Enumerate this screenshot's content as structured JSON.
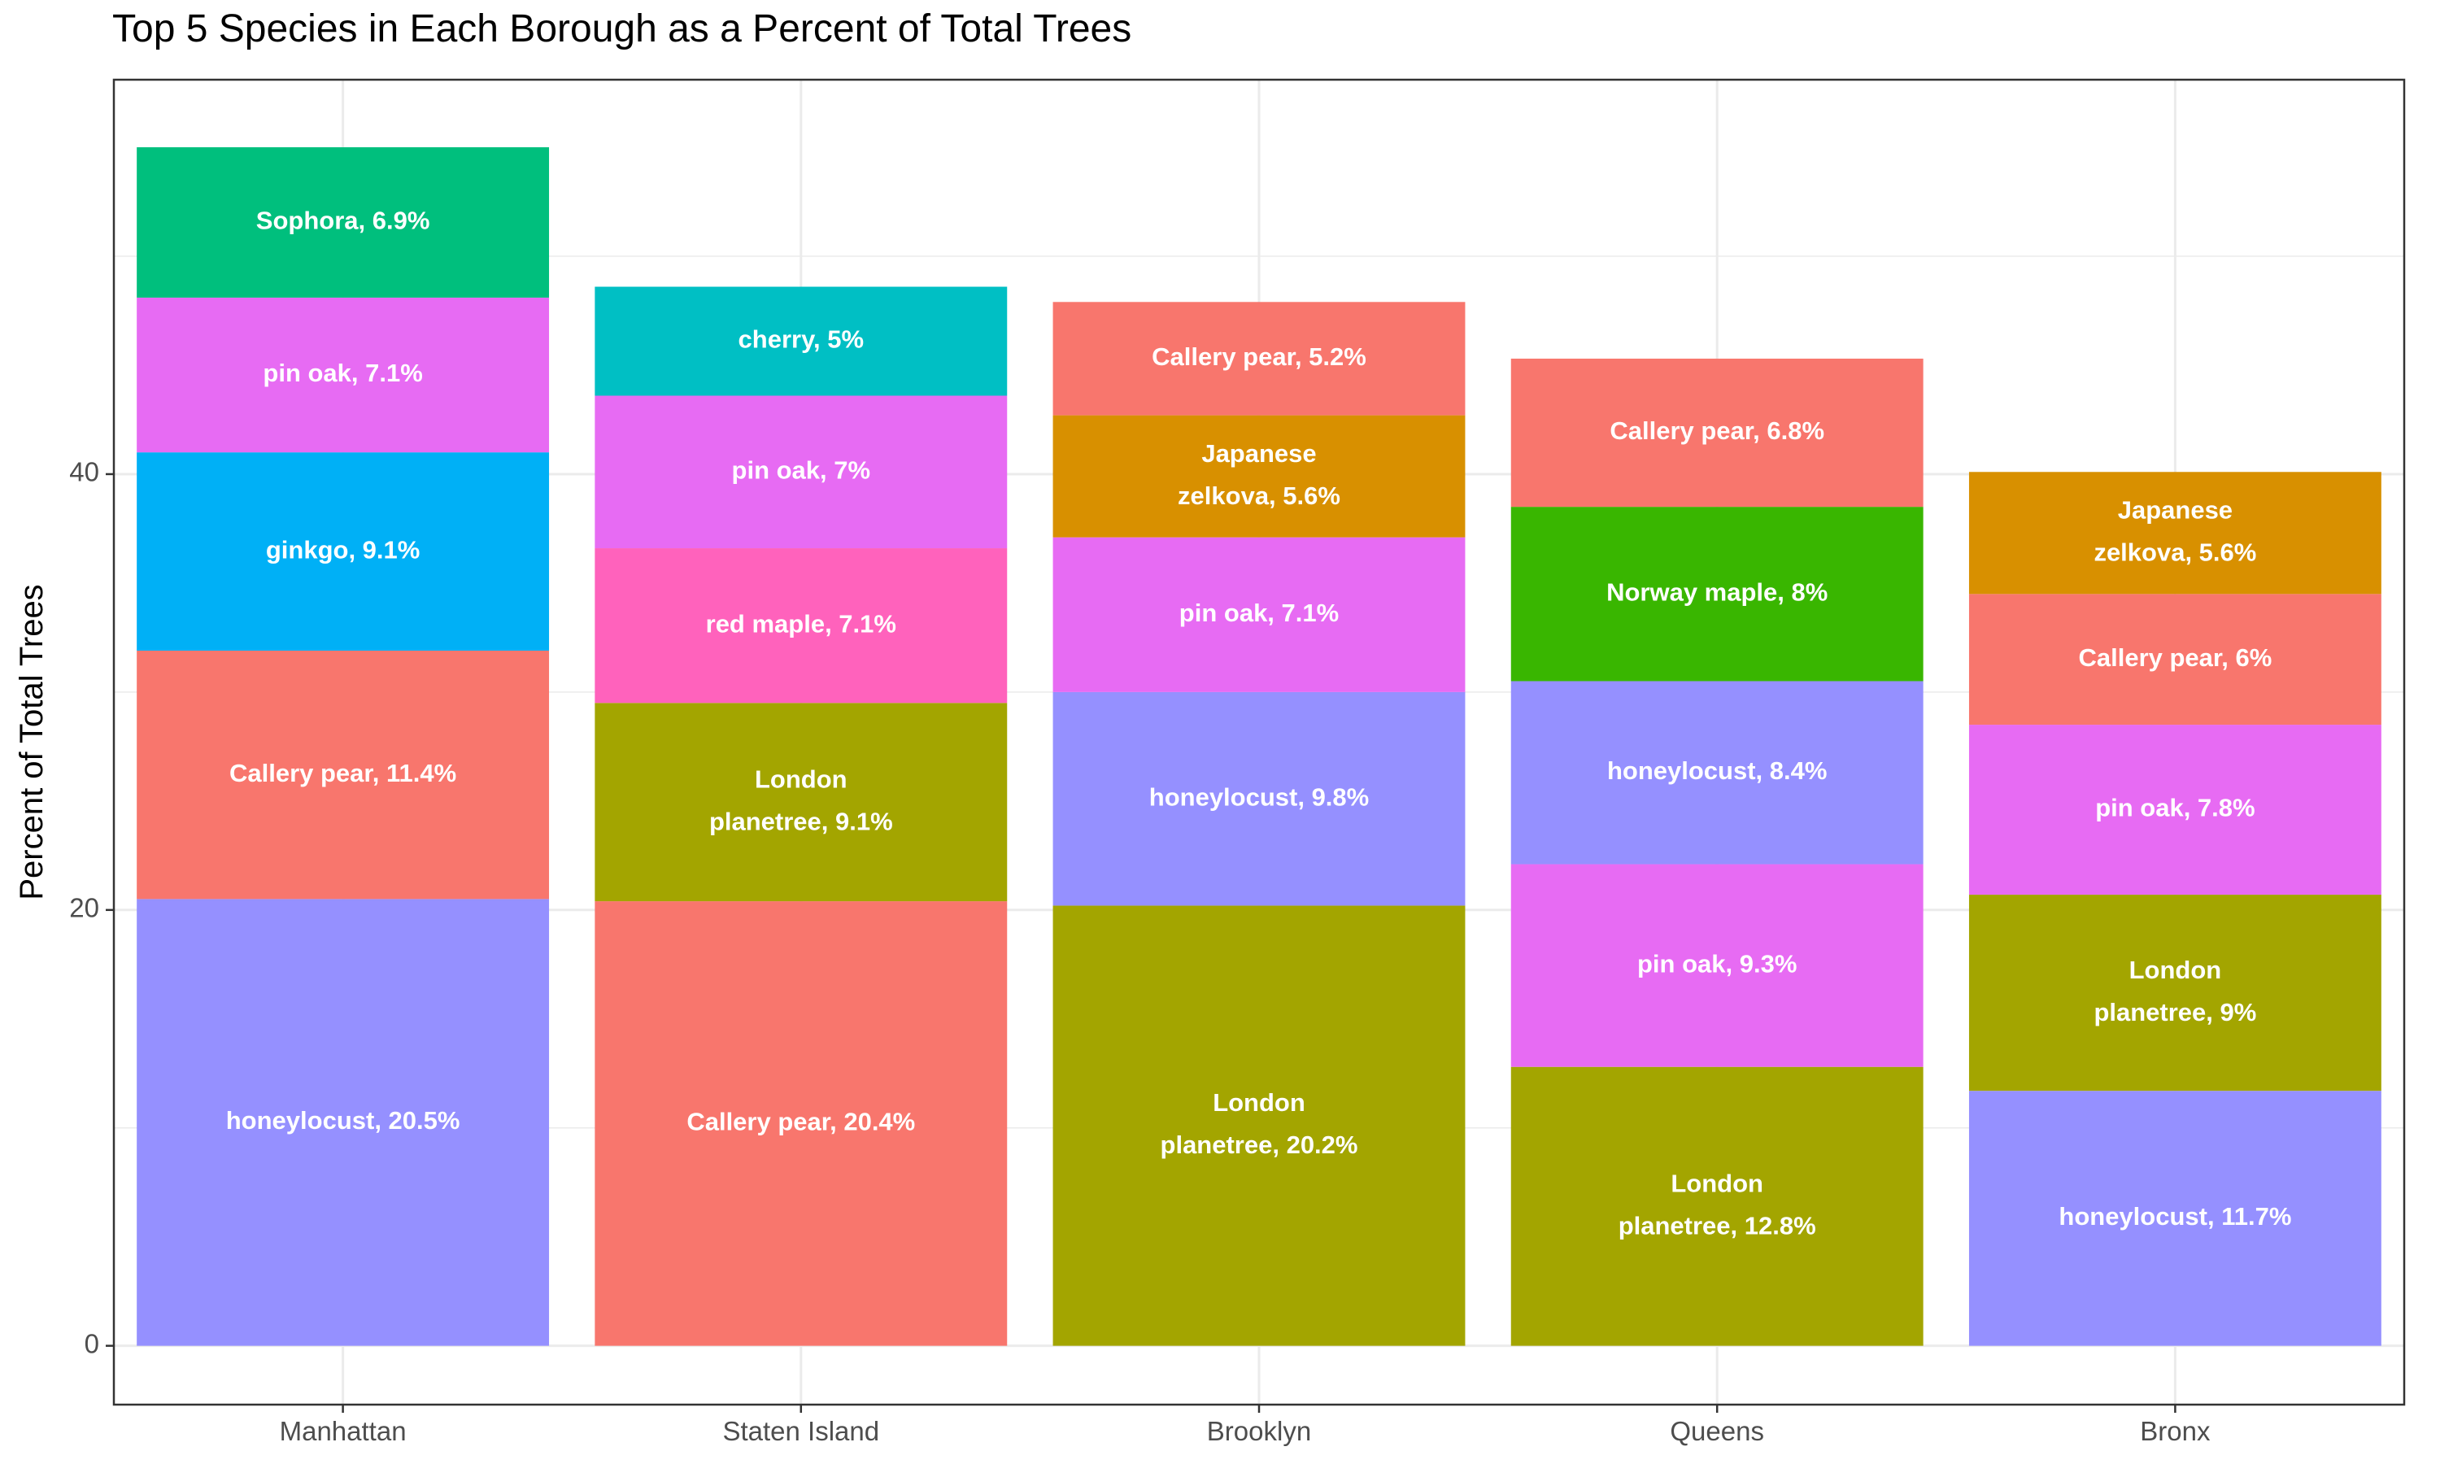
{
  "chart_data": {
    "type": "bar",
    "stacked": true,
    "title": "Top 5 Species in Each Borough as a Percent of Total Trees",
    "xlabel": "",
    "ylabel": "Percent of Total Trees",
    "ylim": [
      -2.7,
      58.1
    ],
    "yticks": [
      0,
      20,
      40
    ],
    "grid": true,
    "legend": "none",
    "categories": [
      "Manhattan",
      "Staten Island",
      "Brooklyn",
      "Queens",
      "Bronx"
    ],
    "colors": {
      "honeylocust": "#9590FF",
      "Callery pear": "#F8766D",
      "ginkgo": "#00B0F6",
      "pin oak": "#E76BF3",
      "Sophora": "#00BF7D",
      "London planetree": "#A3A500",
      "red maple": "#FF62BC",
      "cherry": "#00BFC4",
      "Japanese zelkova": "#D89000",
      "Norway maple": "#39B600"
    },
    "stacks": [
      {
        "category": "Manhattan",
        "segments": [
          {
            "species": "honeylocust",
            "value": 20.5,
            "label": [
              "honeylocust, 20.5%"
            ]
          },
          {
            "species": "Callery pear",
            "value": 11.4,
            "label": [
              "Callery pear, 11.4%"
            ]
          },
          {
            "species": "ginkgo",
            "value": 9.1,
            "label": [
              "ginkgo, 9.1%"
            ]
          },
          {
            "species": "pin oak",
            "value": 7.1,
            "label": [
              "pin oak, 7.1%"
            ]
          },
          {
            "species": "Sophora",
            "value": 6.9,
            "label": [
              "Sophora, 6.9%"
            ]
          }
        ]
      },
      {
        "category": "Staten Island",
        "segments": [
          {
            "species": "Callery pear",
            "value": 20.4,
            "label": [
              "Callery pear, 20.4%"
            ]
          },
          {
            "species": "London planetree",
            "value": 9.1,
            "label": [
              "London",
              "planetree, 9.1%"
            ]
          },
          {
            "species": "red maple",
            "value": 7.1,
            "label": [
              "red maple, 7.1%"
            ]
          },
          {
            "species": "pin oak",
            "value": 7.0,
            "label": [
              "pin oak, 7%"
            ]
          },
          {
            "species": "cherry",
            "value": 5.0,
            "label": [
              "cherry, 5%"
            ]
          }
        ]
      },
      {
        "category": "Brooklyn",
        "segments": [
          {
            "species": "London planetree",
            "value": 20.2,
            "label": [
              "London",
              "planetree, 20.2%"
            ]
          },
          {
            "species": "honeylocust",
            "value": 9.8,
            "label": [
              "honeylocust, 9.8%"
            ]
          },
          {
            "species": "pin oak",
            "value": 7.1,
            "label": [
              "pin oak, 7.1%"
            ]
          },
          {
            "species": "Japanese zelkova",
            "value": 5.6,
            "label": [
              "Japanese",
              "zelkova, 5.6%"
            ]
          },
          {
            "species": "Callery pear",
            "value": 5.2,
            "label": [
              "Callery pear, 5.2%"
            ]
          }
        ]
      },
      {
        "category": "Queens",
        "segments": [
          {
            "species": "London planetree",
            "value": 12.8,
            "label": [
              "London",
              "planetree, 12.8%"
            ]
          },
          {
            "species": "pin oak",
            "value": 9.3,
            "label": [
              "pin oak, 9.3%"
            ]
          },
          {
            "species": "honeylocust",
            "value": 8.4,
            "label": [
              "honeylocust, 8.4%"
            ]
          },
          {
            "species": "Norway maple",
            "value": 8.0,
            "label": [
              "Norway maple, 8%"
            ]
          },
          {
            "species": "Callery pear",
            "value": 6.8,
            "label": [
              "Callery pear, 6.8%"
            ]
          }
        ]
      },
      {
        "category": "Bronx",
        "segments": [
          {
            "species": "honeylocust",
            "value": 11.7,
            "label": [
              "honeylocust, 11.7%"
            ]
          },
          {
            "species": "London planetree",
            "value": 9.0,
            "label": [
              "London",
              "planetree, 9%"
            ]
          },
          {
            "species": "pin oak",
            "value": 7.8,
            "label": [
              "pin oak, 7.8%"
            ]
          },
          {
            "species": "Callery pear",
            "value": 6.0,
            "label": [
              "Callery pear, 6%"
            ]
          },
          {
            "species": "Japanese zelkova",
            "value": 5.6,
            "label": [
              "Japanese",
              "zelkova, 5.6%"
            ]
          }
        ]
      }
    ]
  }
}
